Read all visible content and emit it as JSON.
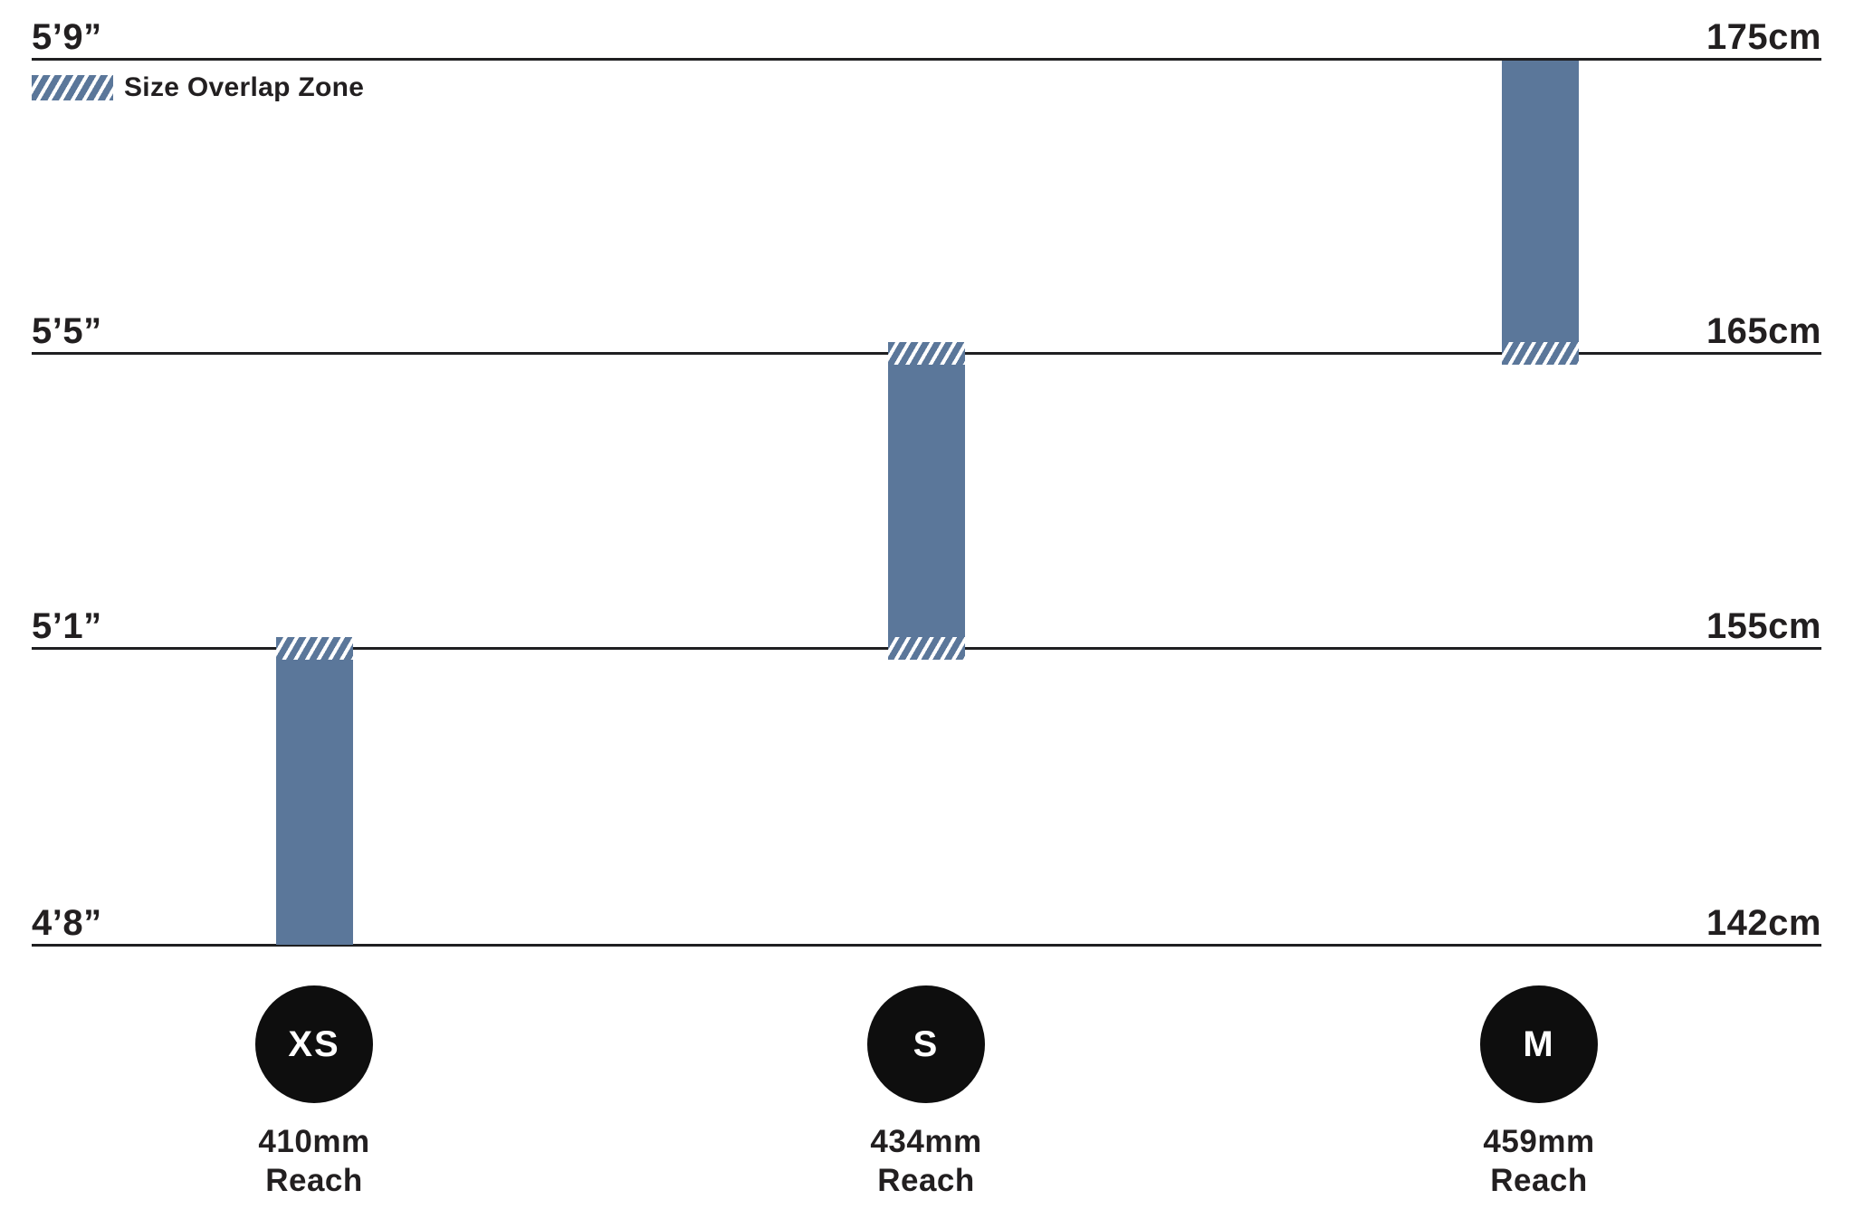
{
  "chart_data": {
    "type": "bar",
    "subtype": "size-range-step-chart",
    "title": "",
    "legend": {
      "label": "Size Overlap Zone",
      "swatch_style": "diagonal-hatch"
    },
    "axis": {
      "left_unit": "imperial height",
      "right_unit": "metric height",
      "range_cm": [
        142,
        175
      ]
    },
    "gridlines": [
      {
        "imperial": "5’9”",
        "metric": "175cm",
        "cm": 175
      },
      {
        "imperial": "5’5”",
        "metric": "165cm",
        "cm": 165
      },
      {
        "imperial": "5’1”",
        "metric": "155cm",
        "cm": 155
      },
      {
        "imperial": "4’8”",
        "metric": "142cm",
        "cm": 142
      }
    ],
    "sizes": [
      {
        "label": "XS",
        "reach_value": "410mm",
        "reach_caption": "Reach",
        "range_cm": [
          142,
          155
        ],
        "overlap_zone": "top"
      },
      {
        "label": "S",
        "reach_value": "434mm",
        "reach_caption": "Reach",
        "range_cm": [
          155,
          165
        ],
        "overlap_zone": "top and bottom"
      },
      {
        "label": "M",
        "reach_value": "459mm",
        "reach_caption": "Reach",
        "range_cm": [
          165,
          175
        ],
        "overlap_zone": "bottom"
      }
    ],
    "colors": {
      "bar": "#5b779a",
      "gridline": "#1f1f21",
      "text": "#221f20",
      "badge": "#0e0e0e",
      "badge_text": "#ffffff"
    }
  }
}
